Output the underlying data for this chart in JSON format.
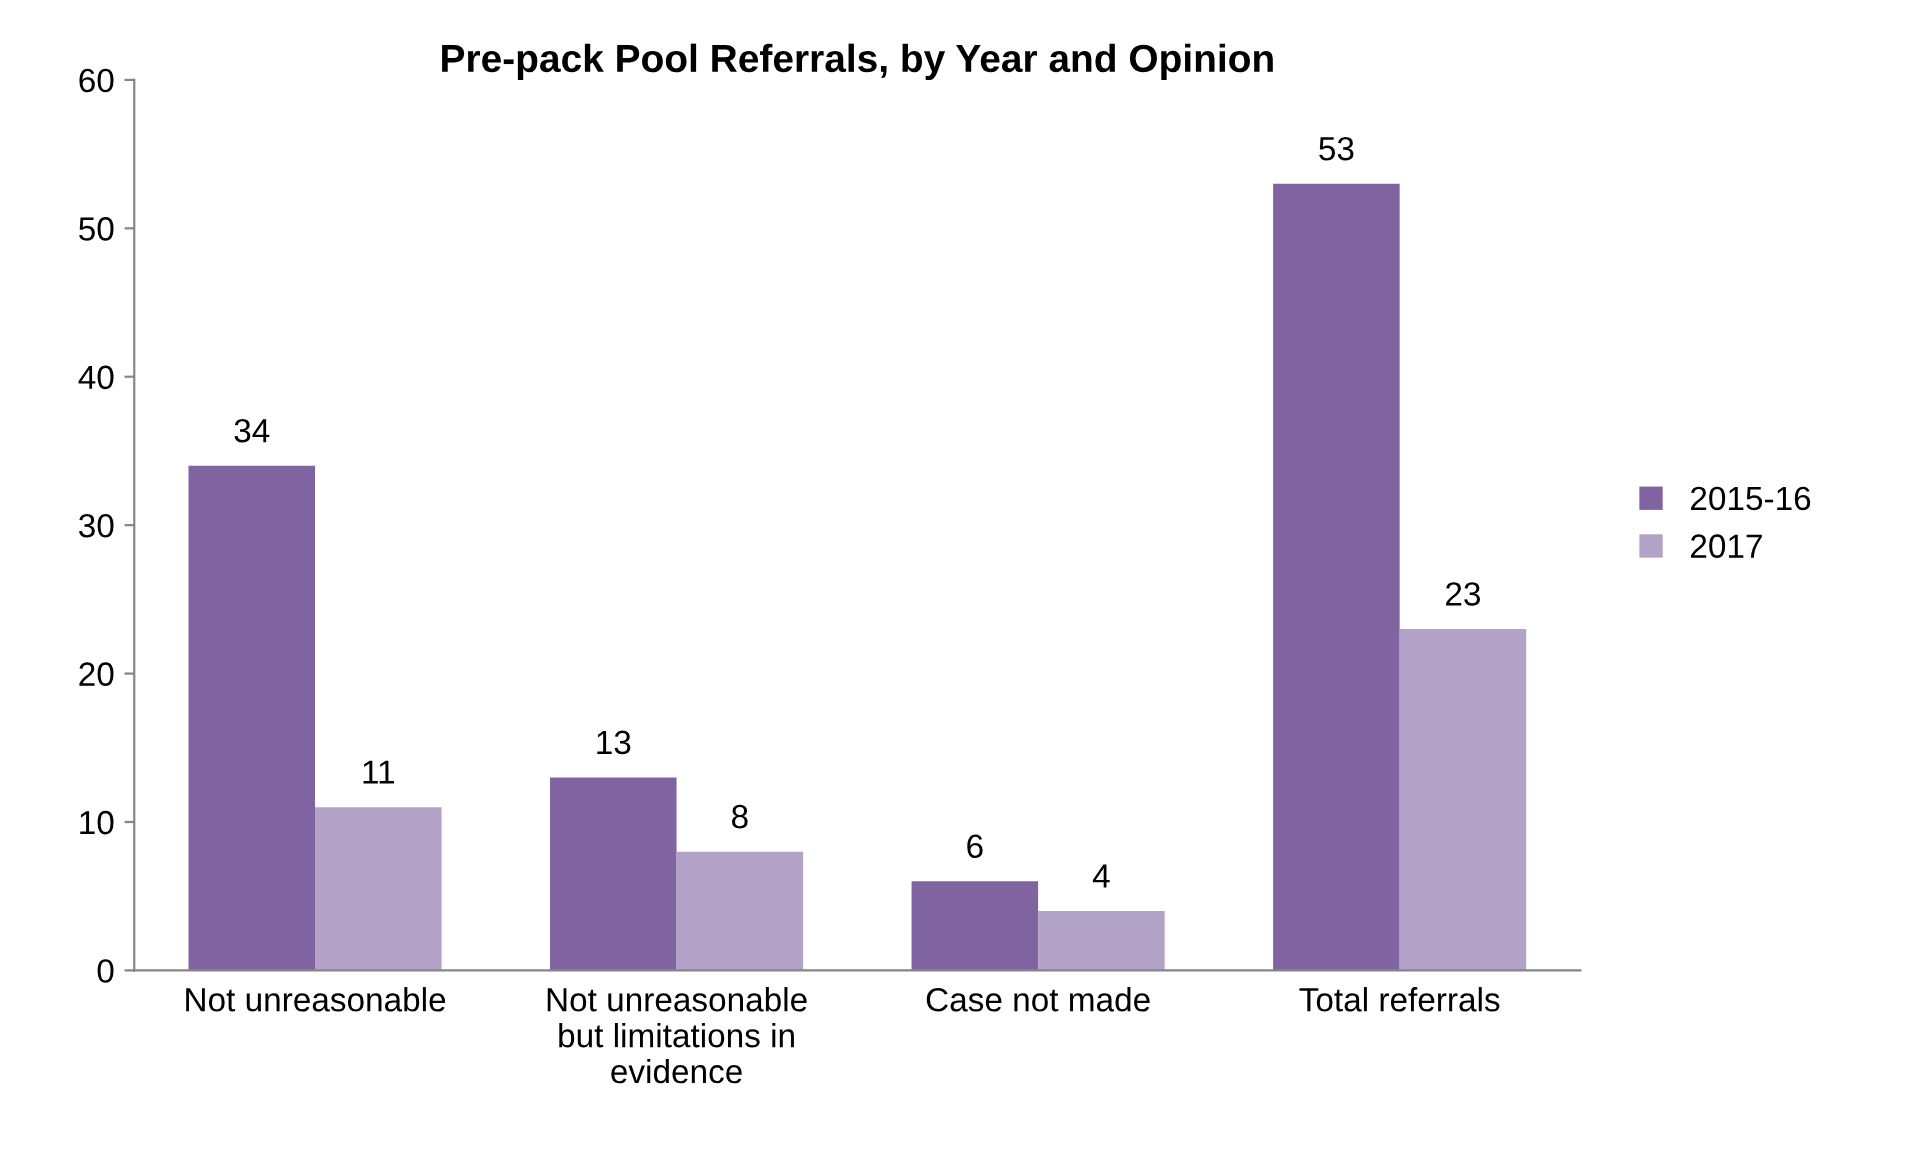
{
  "chart_data": {
    "type": "bar",
    "title": "Pre-pack Pool Referrals, by Year and Opinion",
    "categories": [
      "Not unreasonable",
      "Not unreasonable\nbut limitations in\nevidence",
      "Case not made",
      "Total referrals"
    ],
    "series": [
      {
        "name": "2015-16",
        "color": "#8064a2",
        "values": [
          34,
          13,
          6,
          53
        ]
      },
      {
        "name": "2017",
        "color": "#b3a2c7",
        "values": [
          11,
          8,
          4,
          23
        ]
      }
    ],
    "ylim": [
      0,
      60
    ],
    "yticks": [
      0,
      10,
      20,
      30,
      40,
      50,
      60
    ],
    "grid": false,
    "legend": "right",
    "data_labels": true
  }
}
